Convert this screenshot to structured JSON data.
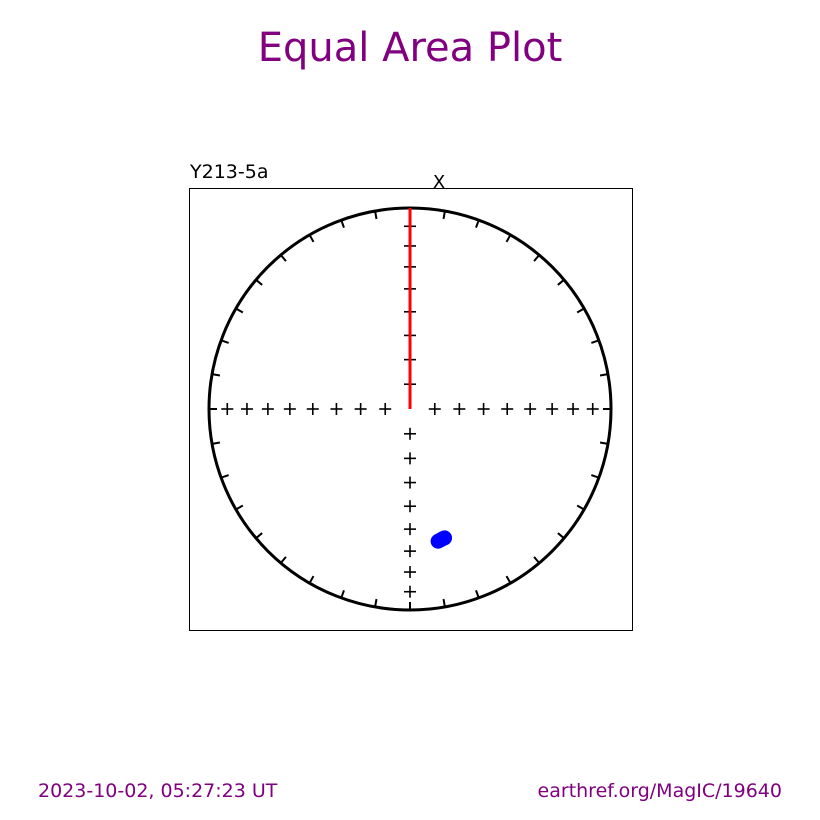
{
  "title": "Equal Area Plot",
  "specimen": "Y213-5a",
  "footer": {
    "date": "2023-10-02, 05:27:23 UT",
    "reference": "earthref.org/MagIC/19640"
  },
  "colors": {
    "title": "#800080",
    "footer": "#800080",
    "points": "#0000ff",
    "direction_line": "#ff0000",
    "frame": "#000000"
  },
  "chart_data": {
    "type": "scatter",
    "projection": "equal-area",
    "north_label": "X",
    "outer_ticks_every_deg": 10,
    "inner_crosses_every_deg": 10,
    "direction_line": {
      "azimuth": 0,
      "from_inclination": 90,
      "to_inclination": 0
    },
    "points": [
      {
        "dec": 167.0,
        "inc": 33.5
      },
      {
        "dec": 166.0,
        "inc": 33.8
      },
      {
        "dec": 165.0,
        "inc": 34.0
      },
      {
        "dec": 168.0,
        "inc": 33.2
      }
    ]
  }
}
